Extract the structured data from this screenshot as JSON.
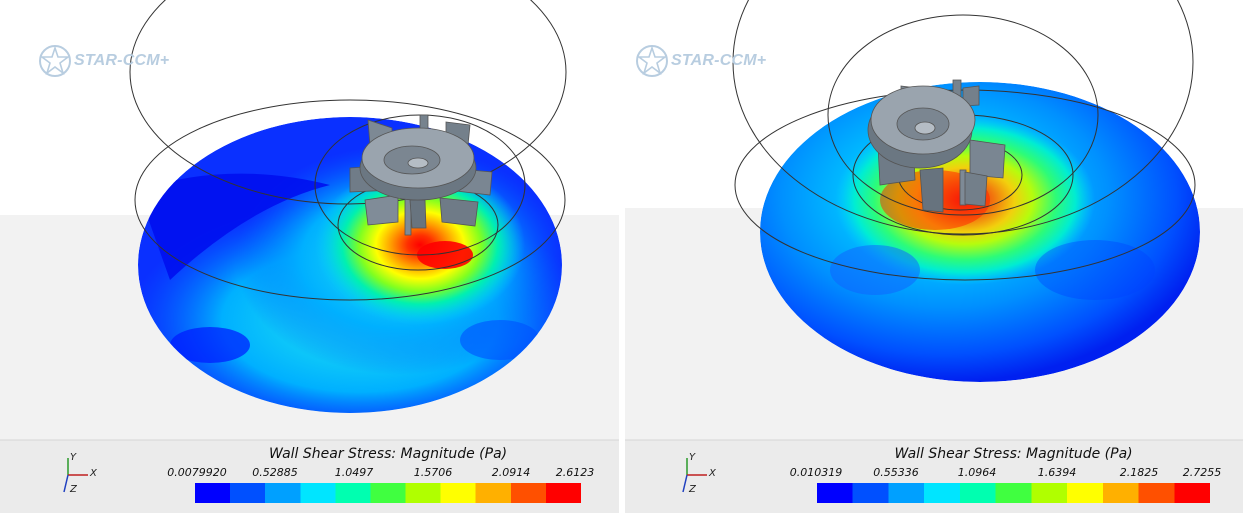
{
  "logo_text": "STAR-CCM+",
  "colormap": [
    "#0000ff",
    "#0050ff",
    "#00a0ff",
    "#00e5ff",
    "#00ffb0",
    "#40ff40",
    "#b0ff00",
    "#ffff00",
    "#ffb000",
    "#ff5000",
    "#ff0000"
  ],
  "panels": [
    {
      "bar_title": "Wall Shear Stress: Magnitude (Pa)",
      "ticks": [
        "0.0079920",
        "0.52885",
        "1.0497",
        "1.5706",
        "2.0914",
        "2.6123"
      ],
      "axes": {
        "x": "X",
        "y": "Y",
        "z": "Z"
      }
    },
    {
      "bar_title": "Wall Shear Stress: Magnitude (Pa)",
      "ticks": [
        "0.010319",
        "0.55336",
        "1.0964",
        "1.6394",
        "2.1825",
        "2.7255"
      ],
      "axes": {
        "x": "X",
        "y": "Y",
        "z": "Z"
      }
    }
  ]
}
